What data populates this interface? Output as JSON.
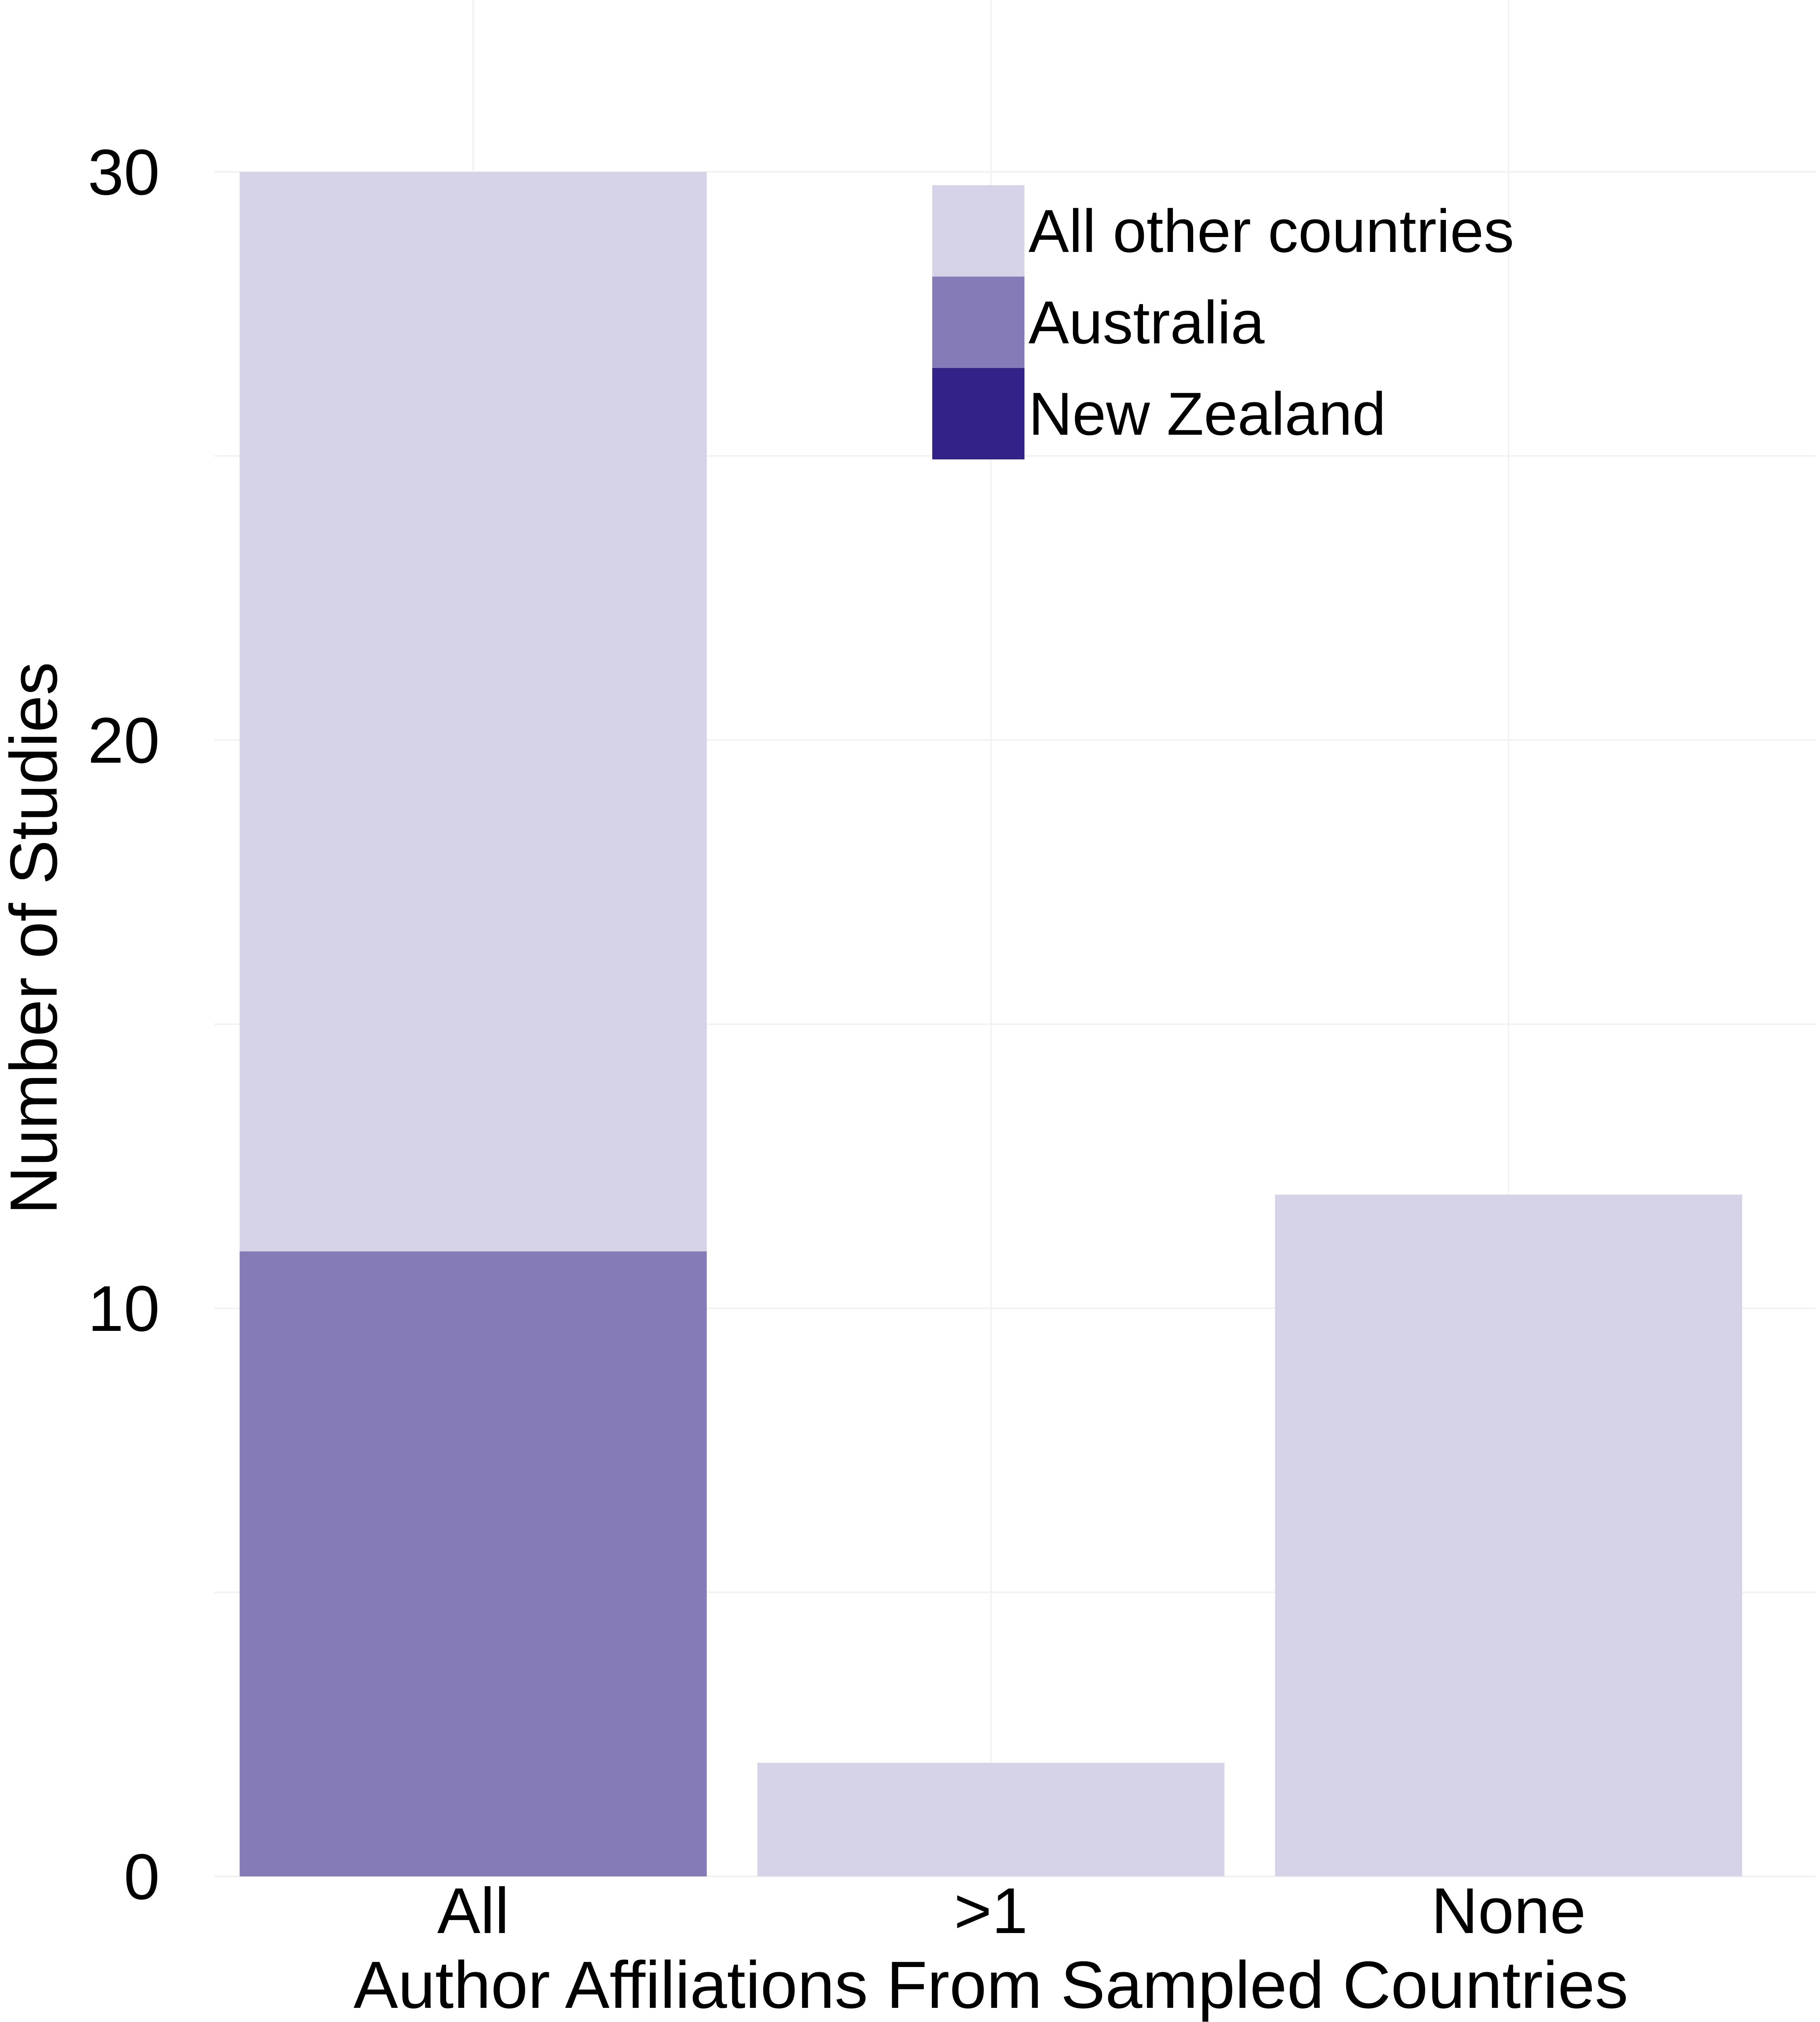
{
  "chart_data": {
    "type": "bar",
    "stacked": true,
    "xlabel": "Author Affiliations From Sampled Countries",
    "ylabel": "Number of Studies",
    "categories": [
      "All",
      ">1",
      "None"
    ],
    "series": [
      {
        "name": "New Zealand",
        "color": "#332288",
        "values": [
          0,
          0,
          0
        ]
      },
      {
        "name": "Australia",
        "color": "#857BB6",
        "values": [
          11,
          0,
          0
        ]
      },
      {
        "name": "All other countries",
        "color": "#D6D3E8",
        "values": [
          19,
          2,
          12
        ]
      }
    ],
    "ylim": [
      0,
      30
    ],
    "yticks": [
      0,
      10,
      20,
      30
    ],
    "grid": true,
    "legend_position": "top-right",
    "legend_order": [
      "All other countries",
      "Australia",
      "New Zealand"
    ]
  }
}
